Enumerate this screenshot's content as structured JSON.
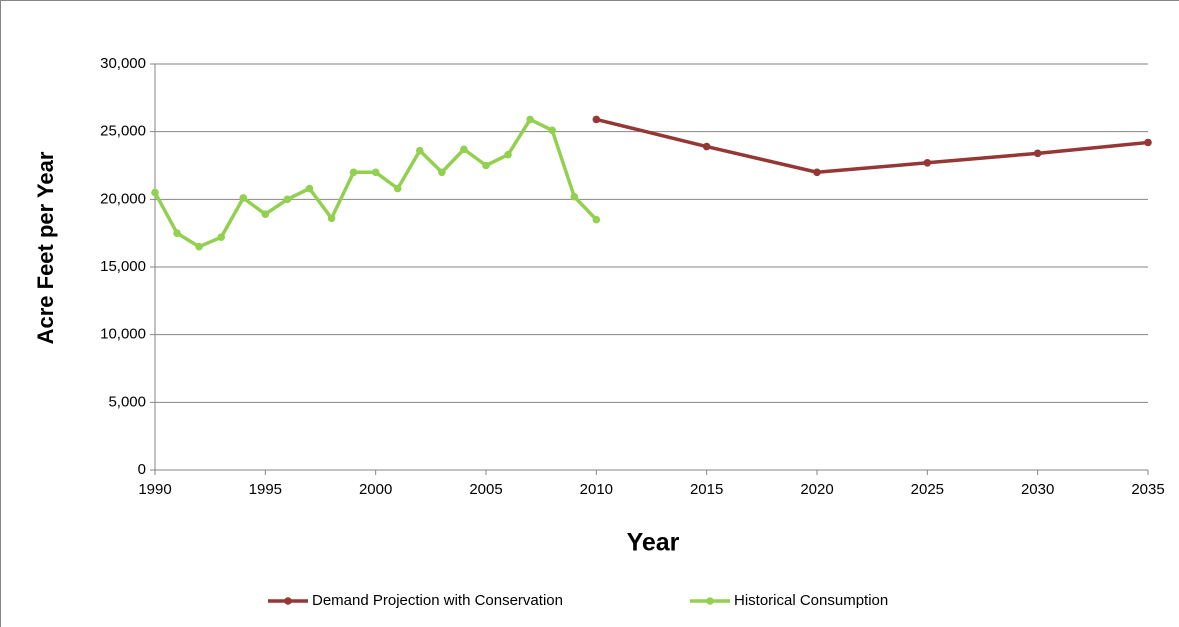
{
  "chart_data": {
    "type": "line",
    "x_label": "Year",
    "y_label": "Acre Feet per Year",
    "xlim": [
      1990,
      2035
    ],
    "xticks": [
      1990,
      1995,
      2000,
      2005,
      2010,
      2015,
      2020,
      2025,
      2030,
      2035
    ],
    "ylim": [
      0,
      30000
    ],
    "yticks": [
      0,
      {
        "value": 5000,
        "label": "5,000"
      },
      {
        "value": 10000,
        "label": "10,000"
      },
      {
        "value": 15000,
        "label": "15,000"
      },
      {
        "value": 20000,
        "label": "20,000"
      },
      {
        "value": 25000,
        "label": "25,000"
      },
      {
        "value": 30000,
        "label": "30,000"
      }
    ],
    "grid": true,
    "legend": "bottom",
    "series": [
      {
        "name": "Demand Projection with Conservation",
        "color": "#953735",
        "x": [
          2010,
          2015,
          2020,
          2025,
          2030,
          2035
        ],
        "values": [
          25900,
          23900,
          22000,
          22700,
          23400,
          24200
        ]
      },
      {
        "name": "Historical Consumption",
        "color": "#92d050",
        "x": [
          1990,
          1991,
          1992,
          1993,
          1994,
          1995,
          1996,
          1997,
          1998,
          1999,
          2000,
          2001,
          2002,
          2003,
          2004,
          2005,
          2006,
          2007,
          2008,
          2009,
          2010
        ],
        "values": [
          20500,
          17500,
          16500,
          17200,
          20100,
          18900,
          20000,
          20800,
          18600,
          22000,
          22000,
          20800,
          23600,
          22000,
          23700,
          22500,
          23300,
          25900,
          25100,
          20200,
          18500
        ]
      }
    ]
  }
}
